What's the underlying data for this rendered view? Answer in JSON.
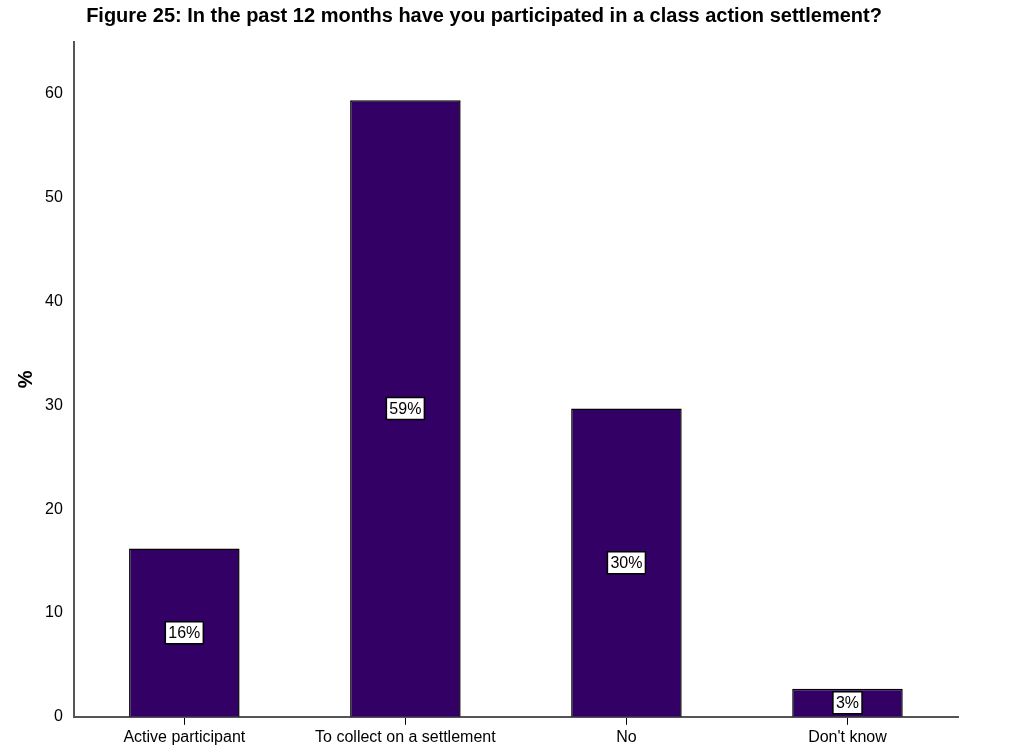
{
  "chart_data": {
    "type": "bar",
    "title": "Figure 25: In the past 12 months have you participated in a class action settlement?",
    "ylabel": "%",
    "categories": [
      "Active participant",
      "To collect on a settlement",
      "No",
      "Don't know"
    ],
    "values": [
      16.2,
      59.4,
      29.7,
      2.7
    ],
    "value_labels": [
      "16%",
      "59%",
      "30%",
      "3%"
    ],
    "color": "#330066",
    "ylim": [
      0,
      65
    ],
    "yticks": [
      0,
      10,
      20,
      30,
      40,
      50,
      60
    ],
    "grid": false,
    "legend": false
  }
}
